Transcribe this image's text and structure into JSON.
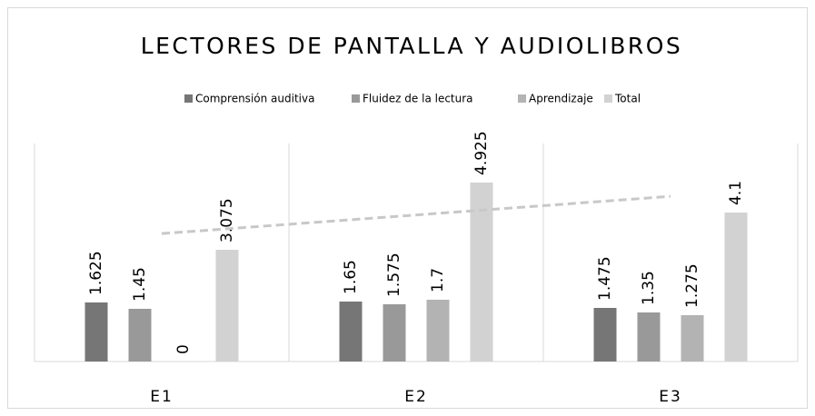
{
  "chart_data": {
    "type": "bar",
    "title": "LECTORES DE PANTALLA Y AUDIOLIBROS",
    "categories": [
      "E1",
      "E2",
      "E3"
    ],
    "series": [
      {
        "name": "Comprensión auditiva",
        "color": "#767676",
        "values": [
          1.625,
          1.65,
          1.475
        ]
      },
      {
        "name": "Fluidez de la lectura",
        "color": "#999999",
        "values": [
          1.45,
          1.575,
          1.35
        ]
      },
      {
        "name": "Aprendizaje",
        "color": "#b3b3b3",
        "values": [
          0,
          1.7,
          1.275
        ]
      },
      {
        "name": "Total",
        "color": "#d2d2d2",
        "values": [
          3.075,
          4.925,
          4.1
        ]
      }
    ],
    "ylim": [
      0,
      6
    ],
    "legend": "top",
    "grid": true,
    "trendline": {
      "series": 3,
      "color": "#c8c8c8"
    }
  }
}
